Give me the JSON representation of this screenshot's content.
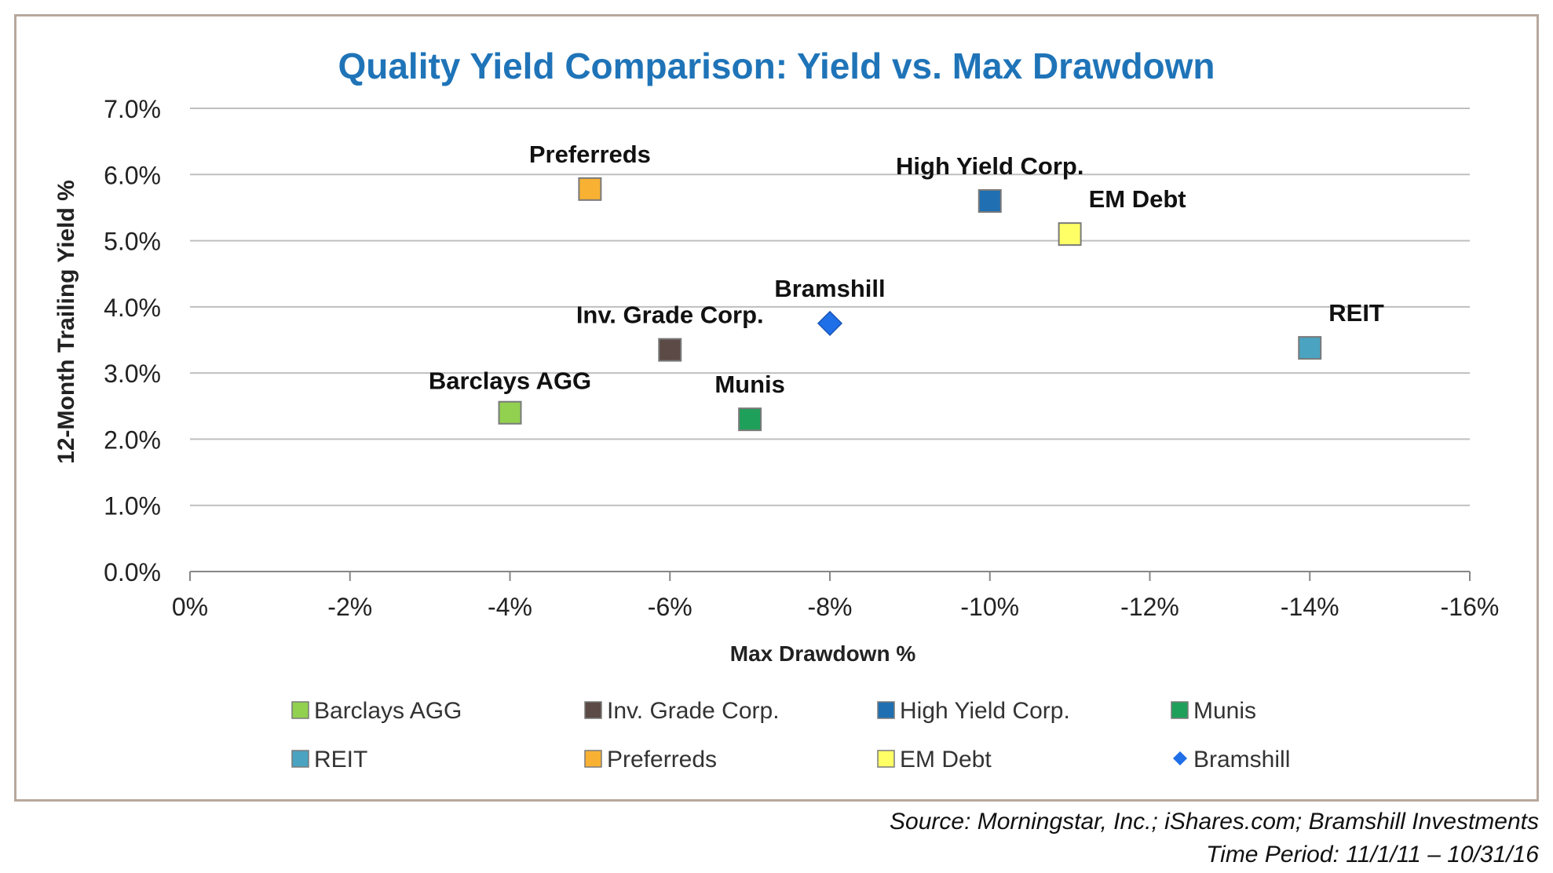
{
  "chart_data": {
    "type": "scatter",
    "title": "Quality Yield Comparison:  Yield vs. Max Drawdown",
    "xlabel": "Max Drawdown %",
    "ylabel": "12-Month Trailing Yield %",
    "xlim": [
      0,
      -16
    ],
    "ylim": [
      0,
      7
    ],
    "x_ticks": [
      0,
      -2,
      -4,
      -6,
      -8,
      -10,
      -12,
      -14,
      -16
    ],
    "x_tick_labels": [
      "0%",
      "-2%",
      "-4%",
      "-6%",
      "-8%",
      "-10%",
      "-12%",
      "-14%",
      "-16%"
    ],
    "y_ticks": [
      0,
      1,
      2,
      3,
      4,
      5,
      6,
      7
    ],
    "y_tick_labels": [
      "0.0%",
      "1.0%",
      "2.0%",
      "3.0%",
      "4.0%",
      "5.0%",
      "6.0%",
      "7.0%"
    ],
    "grid": "horizontal",
    "legend_position": "bottom",
    "series": [
      {
        "name": "Barclays AGG",
        "x": -4,
        "y": 2.4,
        "marker": "square",
        "color": "#92d050",
        "label": "Barclays AGG",
        "label_pos": "above-left"
      },
      {
        "name": "Inv. Grade Corp.",
        "x": -6,
        "y": 3.35,
        "marker": "square",
        "color": "#5b4a45",
        "label": "Inv. Grade Corp.",
        "label_pos": "above"
      },
      {
        "name": "High Yield Corp.",
        "x": -10,
        "y": 5.6,
        "marker": "square",
        "color": "#1f6fb2",
        "label": "High Yield Corp.",
        "label_pos": "above"
      },
      {
        "name": "Munis",
        "x": -7,
        "y": 2.3,
        "marker": "square",
        "color": "#1fa05a",
        "label": "Munis",
        "label_pos": "above"
      },
      {
        "name": "REIT",
        "x": -14,
        "y": 3.38,
        "marker": "square",
        "color": "#4aa3c0",
        "label": "REIT",
        "label_pos": "above-right"
      },
      {
        "name": "Preferreds",
        "x": -5,
        "y": 5.78,
        "marker": "square",
        "color": "#f8b133",
        "label": "Preferreds",
        "label_pos": "above"
      },
      {
        "name": "EM Debt",
        "x": -11,
        "y": 5.1,
        "marker": "square",
        "color": "#ffff66",
        "label": "EM Debt",
        "label_pos": "above-right"
      },
      {
        "name": "Bramshill",
        "x": -8,
        "y": 3.75,
        "marker": "diamond",
        "color": "#1f6fe8",
        "label": "Bramshill",
        "label_pos": "above"
      }
    ]
  },
  "colors": {
    "title": "#1f74b8",
    "grid": "#bfbfbf",
    "axis": "#868686",
    "text": "#222222"
  },
  "source": {
    "line1": "Source: Morningstar, Inc.; iShares.com; Bramshill Investments",
    "line2": "Time Period: 11/1/11 – 10/31/16"
  }
}
